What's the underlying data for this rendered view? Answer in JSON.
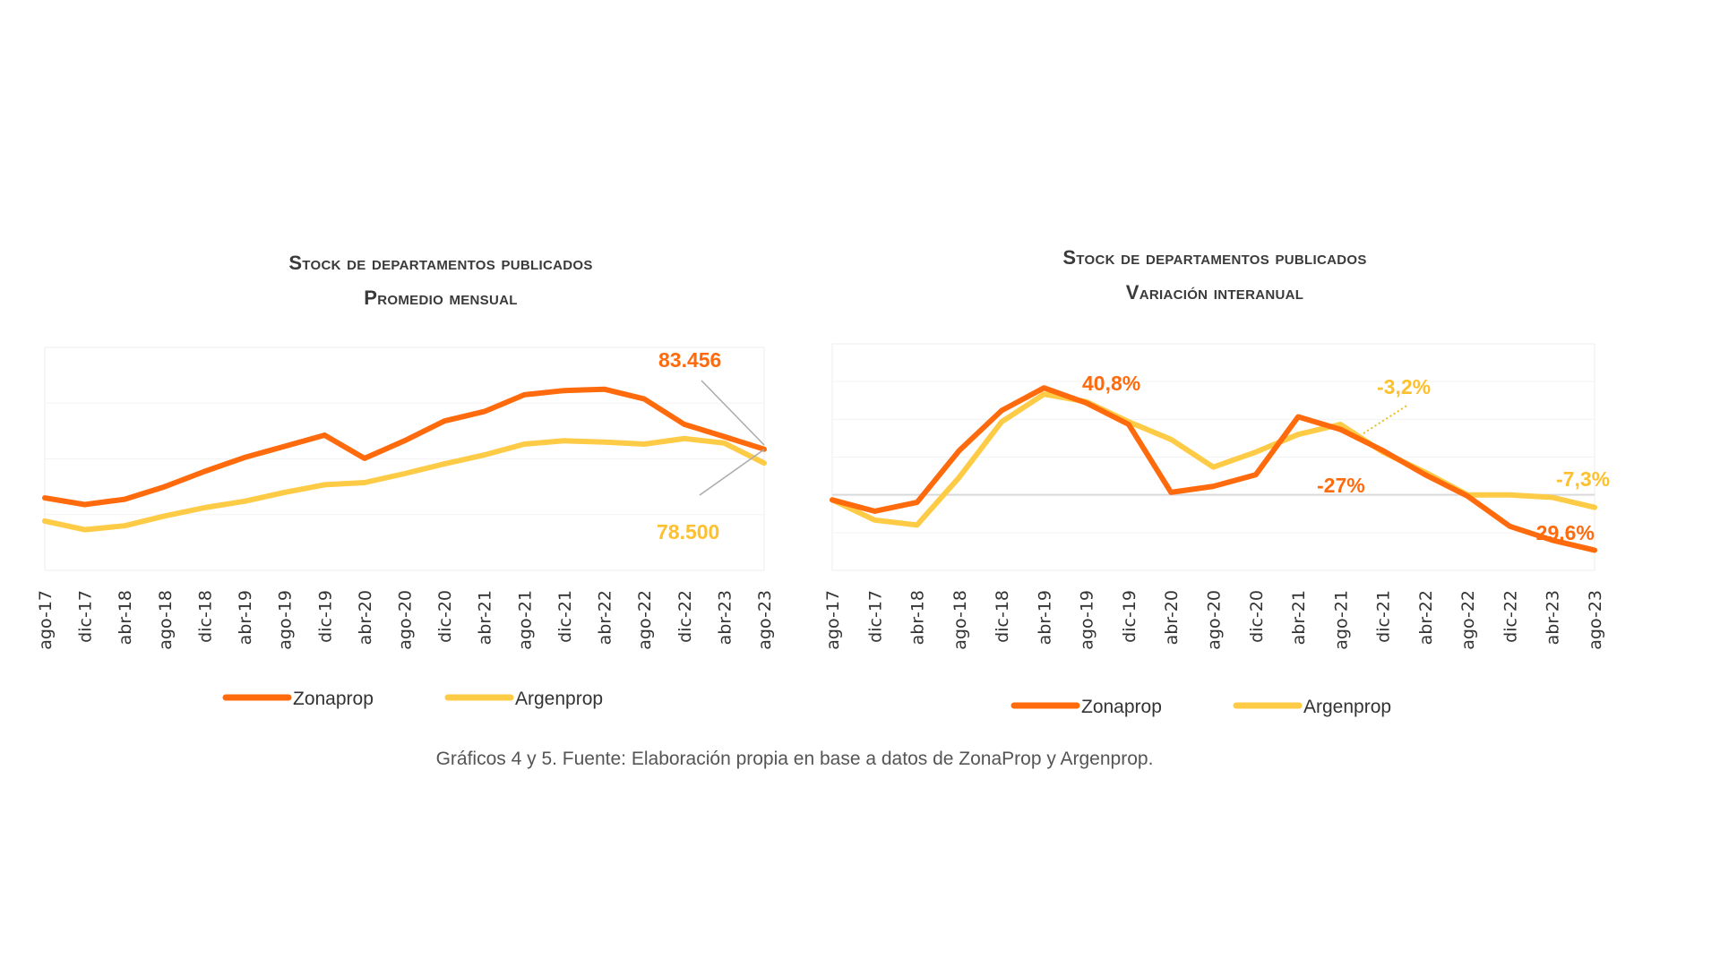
{
  "colors": {
    "zonaprop": "#ff6a0d",
    "argenprop": "#fdcb45",
    "grid": "#eeeeee",
    "leader": "#aaaaaa"
  },
  "caption": "Gráficos 4 y 5. Fuente: Elaboración propia en base a datos de ZonaProp y Argenprop.",
  "chart_data": [
    {
      "type": "line",
      "title": "Stock de departamentos publicados",
      "subtitle": "Promedio mensual",
      "categories": [
        "ago-17",
        "dic-17",
        "abr-18",
        "ago-18",
        "dic-18",
        "abr-19",
        "ago-19",
        "dic-19",
        "abr-20",
        "ago-20",
        "dic-20",
        "abr-21",
        "ago-21",
        "dic-21",
        "abr-22",
        "ago-22",
        "dic-22",
        "abr-23",
        "ago-23"
      ],
      "series": [
        {
          "name": "Zonaprop",
          "values": [
            66000,
            63600,
            65500,
            70000,
            75500,
            80500,
            84500,
            88500,
            80200,
            86500,
            93600,
            97000,
            103000,
            104500,
            105000,
            101500,
            92400,
            88000,
            83456
          ]
        },
        {
          "name": "Argenprop",
          "values": [
            57700,
            54600,
            56000,
            59500,
            62500,
            64800,
            68000,
            70700,
            71500,
            74700,
            78200,
            81400,
            85300,
            86500,
            86000,
            85300,
            87300,
            85700,
            78500
          ]
        }
      ],
      "annotations": [
        {
          "text": "83.456",
          "series": "Zonaprop"
        },
        {
          "text": "78.500",
          "series": "Argenprop"
        }
      ],
      "ylim": [
        40000,
        120000
      ],
      "grid": true,
      "legend": "bottom"
    },
    {
      "type": "line",
      "title": "Stock de departamentos publicados",
      "subtitle": "Variación interanual",
      "categories": [
        "ago-17",
        "dic-17",
        "abr-18",
        "ago-18",
        "dic-18",
        "abr-19",
        "ago-19",
        "dic-19",
        "abr-20",
        "ago-20",
        "dic-20",
        "abr-21",
        "ago-21",
        "dic-21",
        "abr-22",
        "ago-22",
        "dic-22",
        "abr-23",
        "ago-23"
      ],
      "series": [
        {
          "name": "Zonaprop",
          "values": [
            -2,
            -6.5,
            -3,
            17.6,
            33.5,
            42.5,
            36.5,
            28,
            1,
            3.4,
            8,
            31,
            26,
            17.6,
            8,
            -0.5,
            -12.5,
            -18,
            -22
          ]
        },
        {
          "name": "Argenprop",
          "values": [
            -2,
            -10,
            -12,
            7,
            29,
            40,
            37,
            29,
            22,
            11,
            17,
            24,
            28,
            17,
            9,
            0,
            0,
            -1,
            -5
          ]
        }
      ],
      "annotations": [
        {
          "text": "40,8%",
          "series": "Zonaprop"
        },
        {
          "text": "-3,2%",
          "series": "Argenprop"
        },
        {
          "text": "-27%",
          "series": "Zonaprop"
        },
        {
          "text": "-7,3%",
          "series": "Argenprop"
        },
        {
          "text": "-29,6%",
          "series": "Zonaprop"
        }
      ],
      "ylim": [
        -30,
        60
      ],
      "grid": true,
      "legend": "bottom"
    }
  ]
}
